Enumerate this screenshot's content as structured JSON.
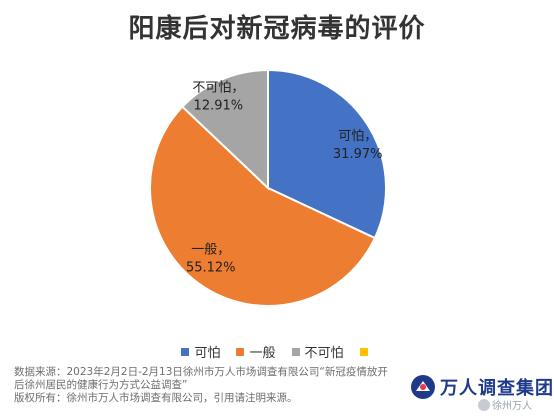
{
  "title": "阳康后对新冠病毒的评价",
  "chart_data": {
    "type": "pie",
    "title": "阳康后对新冠病毒的评价",
    "slices": [
      {
        "label": "可怕",
        "value": 31.97,
        "value_text": "31.97%",
        "color": "#4472C4"
      },
      {
        "label": "一般",
        "value": 55.12,
        "value_text": "55.12%",
        "color": "#ED7D31"
      },
      {
        "label": "不可怕",
        "value": 12.91,
        "value_text": "12.91%",
        "color": "#A5A5A5"
      }
    ],
    "legend": {
      "placement": "bottom",
      "items": [
        {
          "label": "可怕",
          "color": "#4472C4"
        },
        {
          "label": "一般",
          "color": "#ED7D31"
        },
        {
          "label": "不可怕",
          "color": "#A5A5A5"
        },
        {
          "label": "",
          "color": "#FFC000"
        }
      ]
    }
  },
  "footer": {
    "line1": "数据来源：2023年2月2日-2月13日徐州市万人市场调查有限公司“新冠疫情放开",
    "line2": "后徐州居民的健康行为方式公益调查”",
    "line3": "版权所有：徐州市万人市场调查有限公司，引用请注明来源。"
  },
  "logo": {
    "text": "万人调查集团"
  },
  "watermark": {
    "text": "徐州万人"
  }
}
